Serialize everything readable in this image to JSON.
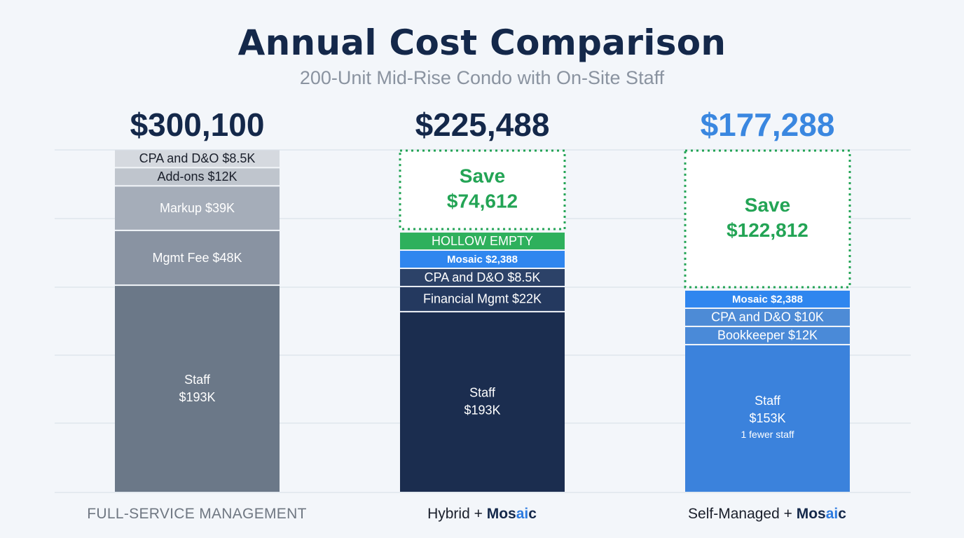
{
  "title": "Annual Cost Comparison",
  "subtitle": "200-Unit Mid-Rise Condo with On-Site Staff",
  "colors": {
    "grid": "#dfe5ec",
    "save_green": "#23a455",
    "mosaic_blue": "#2f86ef",
    "total_dark": "#14284a",
    "total_blue": "#3a87e0"
  },
  "chart_data": {
    "type": "bar",
    "stacked": true,
    "grid": true,
    "categories": [
      "FULL-SERVICE MANAGEMENT",
      "Hybrid + Mosaic",
      "Self-Managed + Mosaic"
    ],
    "ylim": [
      0,
      300100
    ],
    "totals": [
      "$300,100",
      "$225,488",
      "$177,288"
    ],
    "bars": [
      {
        "category": "FULL-SERVICE MANAGEMENT",
        "total": 300100,
        "total_label": "$300,100",
        "segments": [
          {
            "label": "Staff",
            "value": 193000,
            "value_label": "$193K",
            "color": "#6b7888"
          },
          {
            "label": "Mgmt Fee $48K",
            "value": 48000,
            "color": "#8993a2"
          },
          {
            "label": "Markup $39K",
            "value": 39000,
            "color": "#a5adb9"
          },
          {
            "label": "Add-ons $12K",
            "value": 12000,
            "color": "#bfc5cd"
          },
          {
            "label": "CPA and D&O $8.5K",
            "value": 8500,
            "color": "#d5d9df"
          }
        ]
      },
      {
        "category": "Hybrid + Mosaic",
        "total": 225488,
        "total_label": "$225,488",
        "segments": [
          {
            "label": "Staff",
            "value": 193000,
            "value_label": "$193K",
            "color": "#1b2d4f"
          },
          {
            "label": "Financial Mgmt $22K",
            "value": 22000,
            "color": "#24395f"
          },
          {
            "label": "CPA and D&O $8.5K",
            "value": 8500,
            "color": "#2c4268"
          },
          {
            "label": "Mosaic $2,388",
            "value": 2388,
            "color": "#2f86ef",
            "bold": true
          },
          {
            "label": "HOLLOW EMPTY",
            "value": 2388,
            "color": "#2eb05c"
          }
        ],
        "savings": {
          "label": "Save",
          "value": 74612,
          "value_label": "$74,612"
        }
      },
      {
        "category": "Self-Managed + Mosaic",
        "total": 177288,
        "total_label": "$177,288",
        "segments": [
          {
            "label": "Staff",
            "value": 153000,
            "value_label": "$153K",
            "note": "1 fewer staff",
            "color": "#3b82dc"
          },
          {
            "label": "Bookkeeper $12K",
            "value": 12000,
            "color": "#4a8ad8"
          },
          {
            "label": "CPA and D&O $10K",
            "value": 10000,
            "color": "#4d8bd6"
          },
          {
            "label": "Mosaic $2,388",
            "value": 2388,
            "color": "#2f86ef",
            "bold": true
          }
        ],
        "savings": {
          "label": "Save",
          "value": 122812,
          "value_label": "$122,812"
        }
      }
    ]
  },
  "xlabels": {
    "full_service": "FULL-SERVICE MANAGEMENT",
    "hybrid_prefix": "Hybrid + ",
    "self_prefix": "Self-Managed + ",
    "brand_mo": "Mos",
    "brand_ai": "ai",
    "brand_c": "c"
  }
}
